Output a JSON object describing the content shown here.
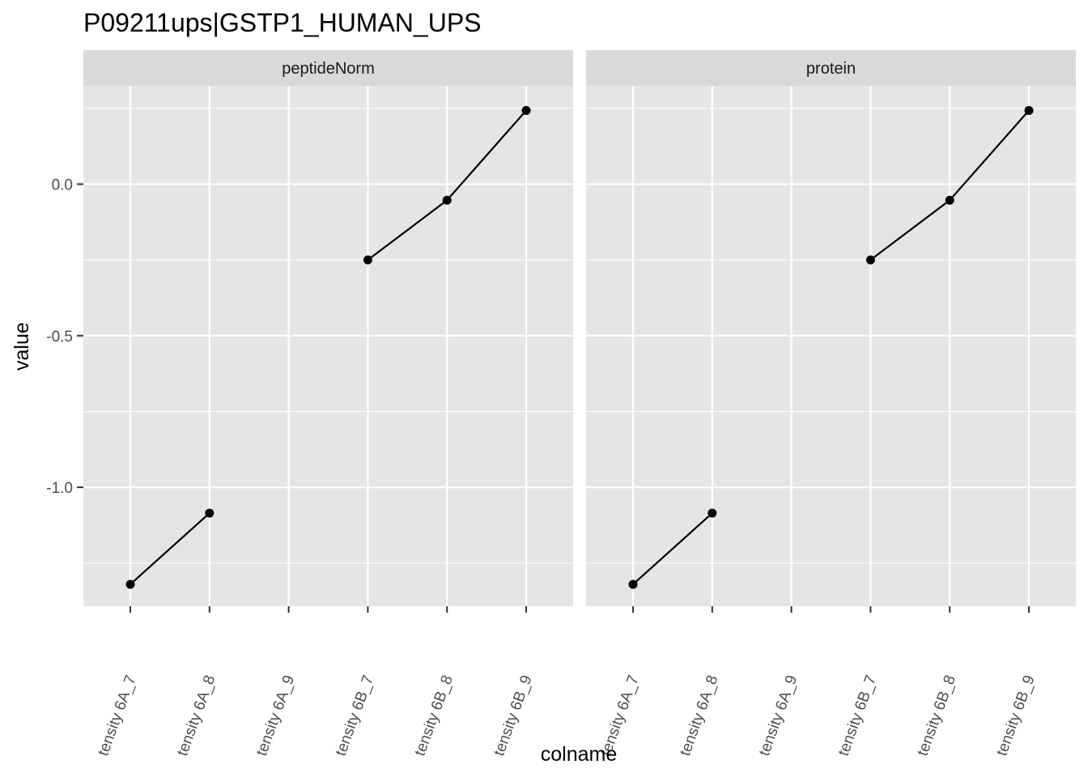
{
  "chart_data": {
    "type": "line",
    "title": "P09211ups|GSTP1_HUMAN_UPS",
    "xlabel": "colname",
    "ylabel": "value",
    "x_tick_labels": [
      "tensity 6A_7",
      "tensity 6A_8",
      "tensity 6A_9",
      "tensity 6B_7",
      "tensity 6B_8",
      "tensity 6B_9"
    ],
    "y_ticks": [
      0.0,
      -0.5,
      -1.0
    ],
    "y_tick_labels": [
      "0.0",
      "-0.5",
      "-1.0"
    ],
    "ylim": [
      -1.39,
      0.32
    ],
    "grid": true,
    "panels": [
      {
        "name": "peptideNorm",
        "segments": [
          [
            {
              "x": "tensity 6A_7",
              "y": -1.32
            },
            {
              "x": "tensity 6A_8",
              "y": -1.085
            }
          ],
          [
            {
              "x": "tensity 6B_7",
              "y": -0.25
            },
            {
              "x": "tensity 6B_8",
              "y": -0.053
            },
            {
              "x": "tensity 6B_9",
              "y": 0.243
            }
          ]
        ]
      },
      {
        "name": "protein",
        "segments": [
          [
            {
              "x": "tensity 6A_7",
              "y": -1.32
            },
            {
              "x": "tensity 6A_8",
              "y": -1.085
            }
          ],
          [
            {
              "x": "tensity 6B_7",
              "y": -0.25
            },
            {
              "x": "tensity 6B_8",
              "y": -0.053
            },
            {
              "x": "tensity 6B_9",
              "y": 0.243
            }
          ]
        ]
      }
    ],
    "colors": {
      "panel_background": "#e5e5e5",
      "strip_background": "#d9d9d9",
      "grid": "#ffffff",
      "line": "#000000",
      "point": "#000000"
    }
  }
}
